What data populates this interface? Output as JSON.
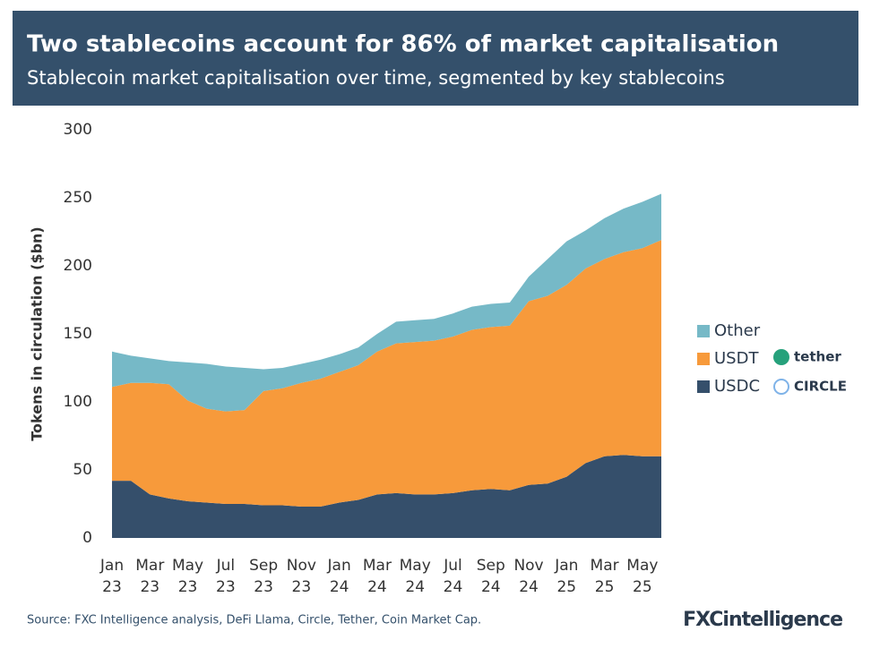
{
  "chart_data": {
    "type": "stacked_area",
    "title": "Two stablecoins account for 86% of market capitalisation",
    "subtitle": "Stablecoin market capitalisation over time, segmented by key stablecoins",
    "ylabel": "Tokens in circulation ($bn)",
    "source": "Source: FXC Intelligence analysis, DeFi Llama, Circle, Tether, Coin Market Cap.",
    "brand": "FXCintelligence",
    "categories": [
      "Jan 23",
      null,
      "Mar 23",
      null,
      "May 23",
      null,
      "Jul 23",
      null,
      "Sep 23",
      null,
      "Nov 23",
      null,
      "Jan 24",
      null,
      "Mar 24",
      null,
      "May 24",
      null,
      "Jul 24",
      null,
      "Sep 24",
      null,
      "Nov 24",
      null,
      "Jan 25",
      null,
      "Mar 25",
      null,
      "May 25",
      null
    ],
    "ylim": [
      0,
      300
    ],
    "yticks": [
      0,
      50,
      100,
      150,
      200,
      250,
      300
    ],
    "grid": false,
    "series": [
      {
        "name": "USDC",
        "logo": "CIRCLE",
        "color": "#354f6b",
        "values": [
          42,
          42,
          32,
          29,
          27,
          26,
          25,
          25,
          24,
          24,
          23,
          23,
          26,
          28,
          32,
          33,
          32,
          32,
          33,
          35,
          36,
          35,
          39,
          40,
          45,
          55,
          60,
          61,
          60,
          60
        ]
      },
      {
        "name": "USDT",
        "logo": "tether",
        "color": "#f79a3b",
        "values": [
          69,
          72,
          82,
          84,
          74,
          69,
          68,
          69,
          84,
          86,
          91,
          94,
          96,
          99,
          105,
          110,
          112,
          113,
          115,
          118,
          119,
          121,
          135,
          138,
          141,
          143,
          145,
          149,
          153,
          159
        ]
      },
      {
        "name": "Other",
        "color": "#76b9c7",
        "values": [
          26,
          20,
          18,
          17,
          28,
          33,
          33,
          31,
          16,
          15,
          14,
          14,
          13,
          13,
          13,
          16,
          16,
          16,
          17,
          17,
          17,
          17,
          18,
          27,
          32,
          28,
          30,
          32,
          34,
          34
        ]
      }
    ]
  }
}
